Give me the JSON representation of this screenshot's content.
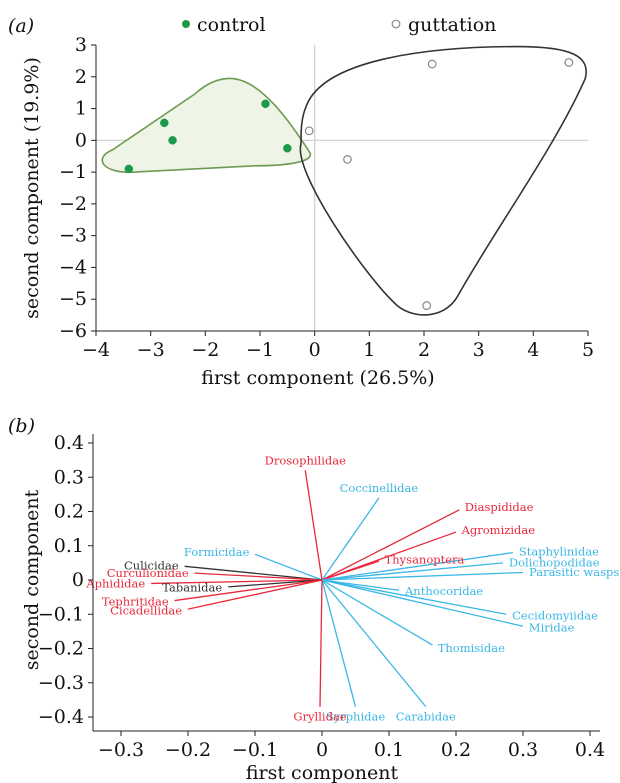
{
  "chart_data": [
    {
      "panel": "(a)",
      "type": "scatter",
      "xlabel": "first component (26.5%)",
      "ylabel": "second component (19.9%)",
      "xlim": [
        -4,
        5
      ],
      "ylim": [
        -6,
        3
      ],
      "xticks": [
        "−4",
        "−3",
        "−2",
        "−1",
        "0",
        "1",
        "2",
        "3",
        "4",
        "5"
      ],
      "yticks": [
        "3",
        "2",
        "1",
        "0",
        "−1",
        "−2",
        "−3",
        "−4",
        "−5",
        "−6"
      ],
      "zero_lines": true,
      "legend_position": "top",
      "series": [
        {
          "name": "control",
          "marker": "filled-circle",
          "color": "#1a9a4a",
          "hull_color": "#6f9a52",
          "hull_fill": "#eef5e6",
          "points": [
            [
              -3.4,
              -0.9
            ],
            [
              -2.75,
              0.55
            ],
            [
              -2.6,
              0.0
            ],
            [
              -0.9,
              1.15
            ],
            [
              -0.5,
              -0.25
            ]
          ]
        },
        {
          "name": "guttation",
          "marker": "open-circle",
          "color": "#888888",
          "hull_color": "#333333",
          "points": [
            [
              -0.1,
              0.3
            ],
            [
              0.6,
              -0.6
            ],
            [
              2.15,
              2.4
            ],
            [
              4.65,
              2.45
            ],
            [
              2.05,
              -5.2
            ]
          ]
        }
      ]
    },
    {
      "panel": "(b)",
      "type": "biplot",
      "xlabel": "first component",
      "ylabel": "second component",
      "xlim": [
        -0.35,
        0.4
      ],
      "ylim": [
        -0.42,
        0.43
      ],
      "xticks": [
        "−0.3",
        "−0.2",
        "−0.1",
        "0",
        "0.1",
        "0.2",
        "0.3",
        "0.4"
      ],
      "yticks": [
        "0.4",
        "0.3",
        "0.2",
        "0.1",
        "0",
        "−0.1",
        "−0.2",
        "−0.3",
        "−0.4"
      ],
      "colors": {
        "red": "#e8283a",
        "blue": "#3bb7e6",
        "black": "#333333"
      },
      "vectors": [
        {
          "label": "Drosophilidae",
          "x": -0.025,
          "y": 0.32,
          "color": "red"
        },
        {
          "label": "Coccinellidae",
          "x": 0.085,
          "y": 0.24,
          "color": "blue"
        },
        {
          "label": "Diaspididae",
          "x": 0.205,
          "y": 0.205,
          "color": "red"
        },
        {
          "label": "Agromizidae",
          "x": 0.2,
          "y": 0.14,
          "color": "red"
        },
        {
          "label": "Thysanoptera",
          "x": 0.085,
          "y": 0.055,
          "color": "red"
        },
        {
          "label": "Staphylinidae",
          "x": 0.285,
          "y": 0.08,
          "color": "blue"
        },
        {
          "label": "Dolichopodidae",
          "x": 0.27,
          "y": 0.05,
          "color": "blue"
        },
        {
          "label": "Parasitic wasps",
          "x": 0.3,
          "y": 0.022,
          "color": "blue"
        },
        {
          "label": "Anthocoridae",
          "x": 0.115,
          "y": -0.03,
          "color": "blue"
        },
        {
          "label": "Cecidomyiidae",
          "x": 0.275,
          "y": -0.1,
          "color": "blue"
        },
        {
          "label": "Miridae",
          "x": 0.3,
          "y": -0.135,
          "color": "blue"
        },
        {
          "label": "Thomisidae",
          "x": 0.165,
          "y": -0.19,
          "color": "blue"
        },
        {
          "label": "Carabidae",
          "x": 0.155,
          "y": -0.37,
          "color": "blue"
        },
        {
          "label": "Syrphidae",
          "x": 0.05,
          "y": -0.37,
          "color": "blue"
        },
        {
          "label": "Gryllidae",
          "x": -0.003,
          "y": -0.37,
          "color": "red"
        },
        {
          "label": "Formicidae",
          "x": -0.1,
          "y": 0.075,
          "color": "blue"
        },
        {
          "label": "Culicidae",
          "x": -0.205,
          "y": 0.04,
          "color": "black"
        },
        {
          "label": "Curculionidae",
          "x": -0.19,
          "y": 0.02,
          "color": "red"
        },
        {
          "label": "Aphididae",
          "x": -0.255,
          "y": -0.01,
          "color": "red"
        },
        {
          "label": "Tabanidae",
          "x": -0.14,
          "y": -0.02,
          "color": "black"
        },
        {
          "label": "Tephritidae",
          "x": -0.22,
          "y": -0.06,
          "color": "red"
        },
        {
          "label": "Cicadellidae",
          "x": -0.2,
          "y": -0.085,
          "color": "red"
        }
      ]
    }
  ]
}
